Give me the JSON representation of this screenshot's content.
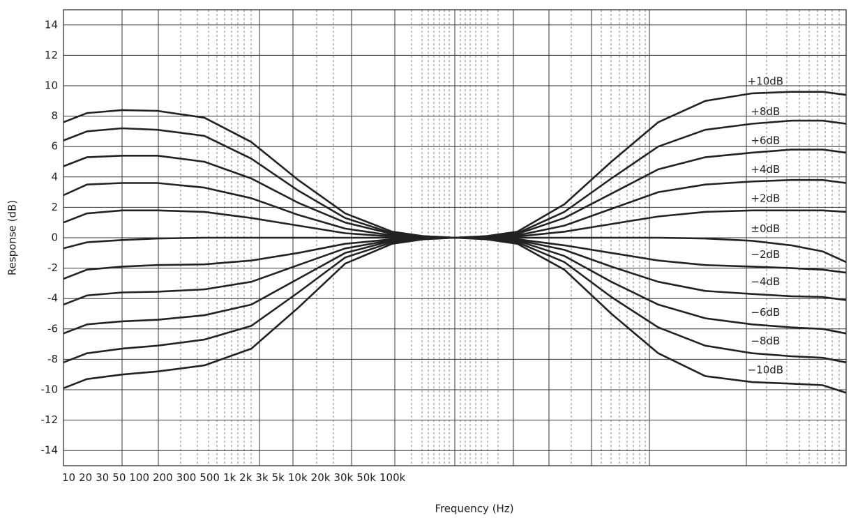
{
  "chart_data": {
    "type": "line",
    "y_label": "Response (dB)",
    "x_label": "Frequency (Hz)",
    "x_tick_labels": [
      "10",
      "20",
      "30",
      "50",
      "100",
      "200",
      "300",
      "500",
      "1k",
      "2k",
      "3k",
      "5k",
      "10k",
      "20k",
      "30k",
      "50k",
      "100k"
    ],
    "xlim": [
      0,
      100
    ],
    "ylim": [
      -15,
      15
    ],
    "yticks": [
      -14,
      -12,
      -10,
      -8,
      -6,
      -4,
      -2,
      0,
      2,
      4,
      6,
      8,
      10,
      12,
      14
    ],
    "grid": true,
    "x": [
      0,
      3,
      7.5,
      12,
      18,
      24,
      30,
      36,
      42,
      46,
      50,
      54,
      58,
      64,
      70,
      76,
      82,
      88,
      93,
      97,
      100
    ],
    "series": [
      {
        "name": "+10dB",
        "color": "#222222",
        "values": [
          7.6,
          8.2,
          8.4,
          8.35,
          7.9,
          6.3,
          3.8,
          1.6,
          0.4,
          0.1,
          0,
          0.1,
          0.4,
          2.2,
          5.0,
          7.6,
          9.0,
          9.5,
          9.6,
          9.6,
          9.4
        ]
      },
      {
        "name": "+8dB",
        "color": "#222222",
        "values": [
          6.4,
          7.0,
          7.2,
          7.1,
          6.7,
          5.2,
          3.1,
          1.3,
          0.3,
          0.1,
          0,
          0.1,
          0.3,
          1.7,
          3.9,
          6.0,
          7.1,
          7.5,
          7.7,
          7.7,
          7.5
        ]
      },
      {
        "name": "+6dB",
        "color": "#222222",
        "values": [
          4.7,
          5.3,
          5.4,
          5.4,
          5.0,
          3.9,
          2.3,
          1.0,
          0.25,
          0.05,
          0,
          0.05,
          0.25,
          1.3,
          2.9,
          4.5,
          5.3,
          5.6,
          5.8,
          5.8,
          5.6
        ]
      },
      {
        "name": "+4dB",
        "color": "#222222",
        "values": [
          2.8,
          3.5,
          3.6,
          3.6,
          3.3,
          2.6,
          1.5,
          0.6,
          0.15,
          0.03,
          0,
          0.03,
          0.15,
          0.8,
          1.9,
          3.0,
          3.5,
          3.7,
          3.8,
          3.8,
          3.6
        ]
      },
      {
        "name": "+2dB",
        "color": "#222222",
        "values": [
          1.0,
          1.6,
          1.8,
          1.8,
          1.7,
          1.3,
          0.8,
          0.3,
          0.08,
          0.02,
          0,
          0.02,
          0.08,
          0.4,
          0.9,
          1.4,
          1.7,
          1.8,
          1.8,
          1.8,
          1.7
        ]
      },
      {
        "name": "±0dB",
        "color": "#222222",
        "values": [
          -0.7,
          -0.3,
          -0.15,
          -0.05,
          0,
          0,
          0,
          0,
          0,
          0,
          0,
          0,
          0,
          0,
          0,
          0,
          -0.05,
          -0.2,
          -0.5,
          -0.9,
          -1.6
        ]
      },
      {
        "name": "−2dB",
        "color": "#222222",
        "values": [
          -2.7,
          -2.1,
          -1.9,
          -1.8,
          -1.75,
          -1.5,
          -1.0,
          -0.4,
          -0.1,
          -0.02,
          0,
          -0.02,
          -0.1,
          -0.5,
          -1.0,
          -1.5,
          -1.8,
          -1.9,
          -2.0,
          -2.1,
          -2.3
        ]
      },
      {
        "name": "−4dB",
        "color": "#222222",
        "values": [
          -4.4,
          -3.8,
          -3.6,
          -3.55,
          -3.4,
          -2.9,
          -1.8,
          -0.7,
          -0.15,
          -0.03,
          0,
          -0.03,
          -0.15,
          -0.8,
          -1.9,
          -2.9,
          -3.5,
          -3.7,
          -3.85,
          -3.9,
          -4.1
        ]
      },
      {
        "name": "−6dB",
        "color": "#222222",
        "values": [
          -6.3,
          -5.7,
          -5.5,
          -5.4,
          -5.1,
          -4.4,
          -2.7,
          -1.0,
          -0.2,
          -0.05,
          0,
          -0.05,
          -0.2,
          -1.2,
          -2.9,
          -4.4,
          -5.3,
          -5.7,
          -5.9,
          -6.0,
          -6.3
        ]
      },
      {
        "name": "−8dB",
        "color": "#222222",
        "values": [
          -8.2,
          -7.6,
          -7.3,
          -7.1,
          -6.7,
          -5.8,
          -3.6,
          -1.3,
          -0.3,
          -0.05,
          0,
          -0.05,
          -0.3,
          -1.6,
          -3.9,
          -5.9,
          -7.1,
          -7.6,
          -7.8,
          -7.9,
          -8.2
        ]
      },
      {
        "name": "−10dB",
        "color": "#222222",
        "values": [
          -9.9,
          -9.3,
          -9.0,
          -8.8,
          -8.4,
          -7.3,
          -4.6,
          -1.7,
          -0.4,
          -0.1,
          0,
          -0.1,
          -0.4,
          -2.1,
          -5.0,
          -7.6,
          -9.1,
          -9.5,
          -9.6,
          -9.7,
          -10.2
        ]
      }
    ]
  }
}
